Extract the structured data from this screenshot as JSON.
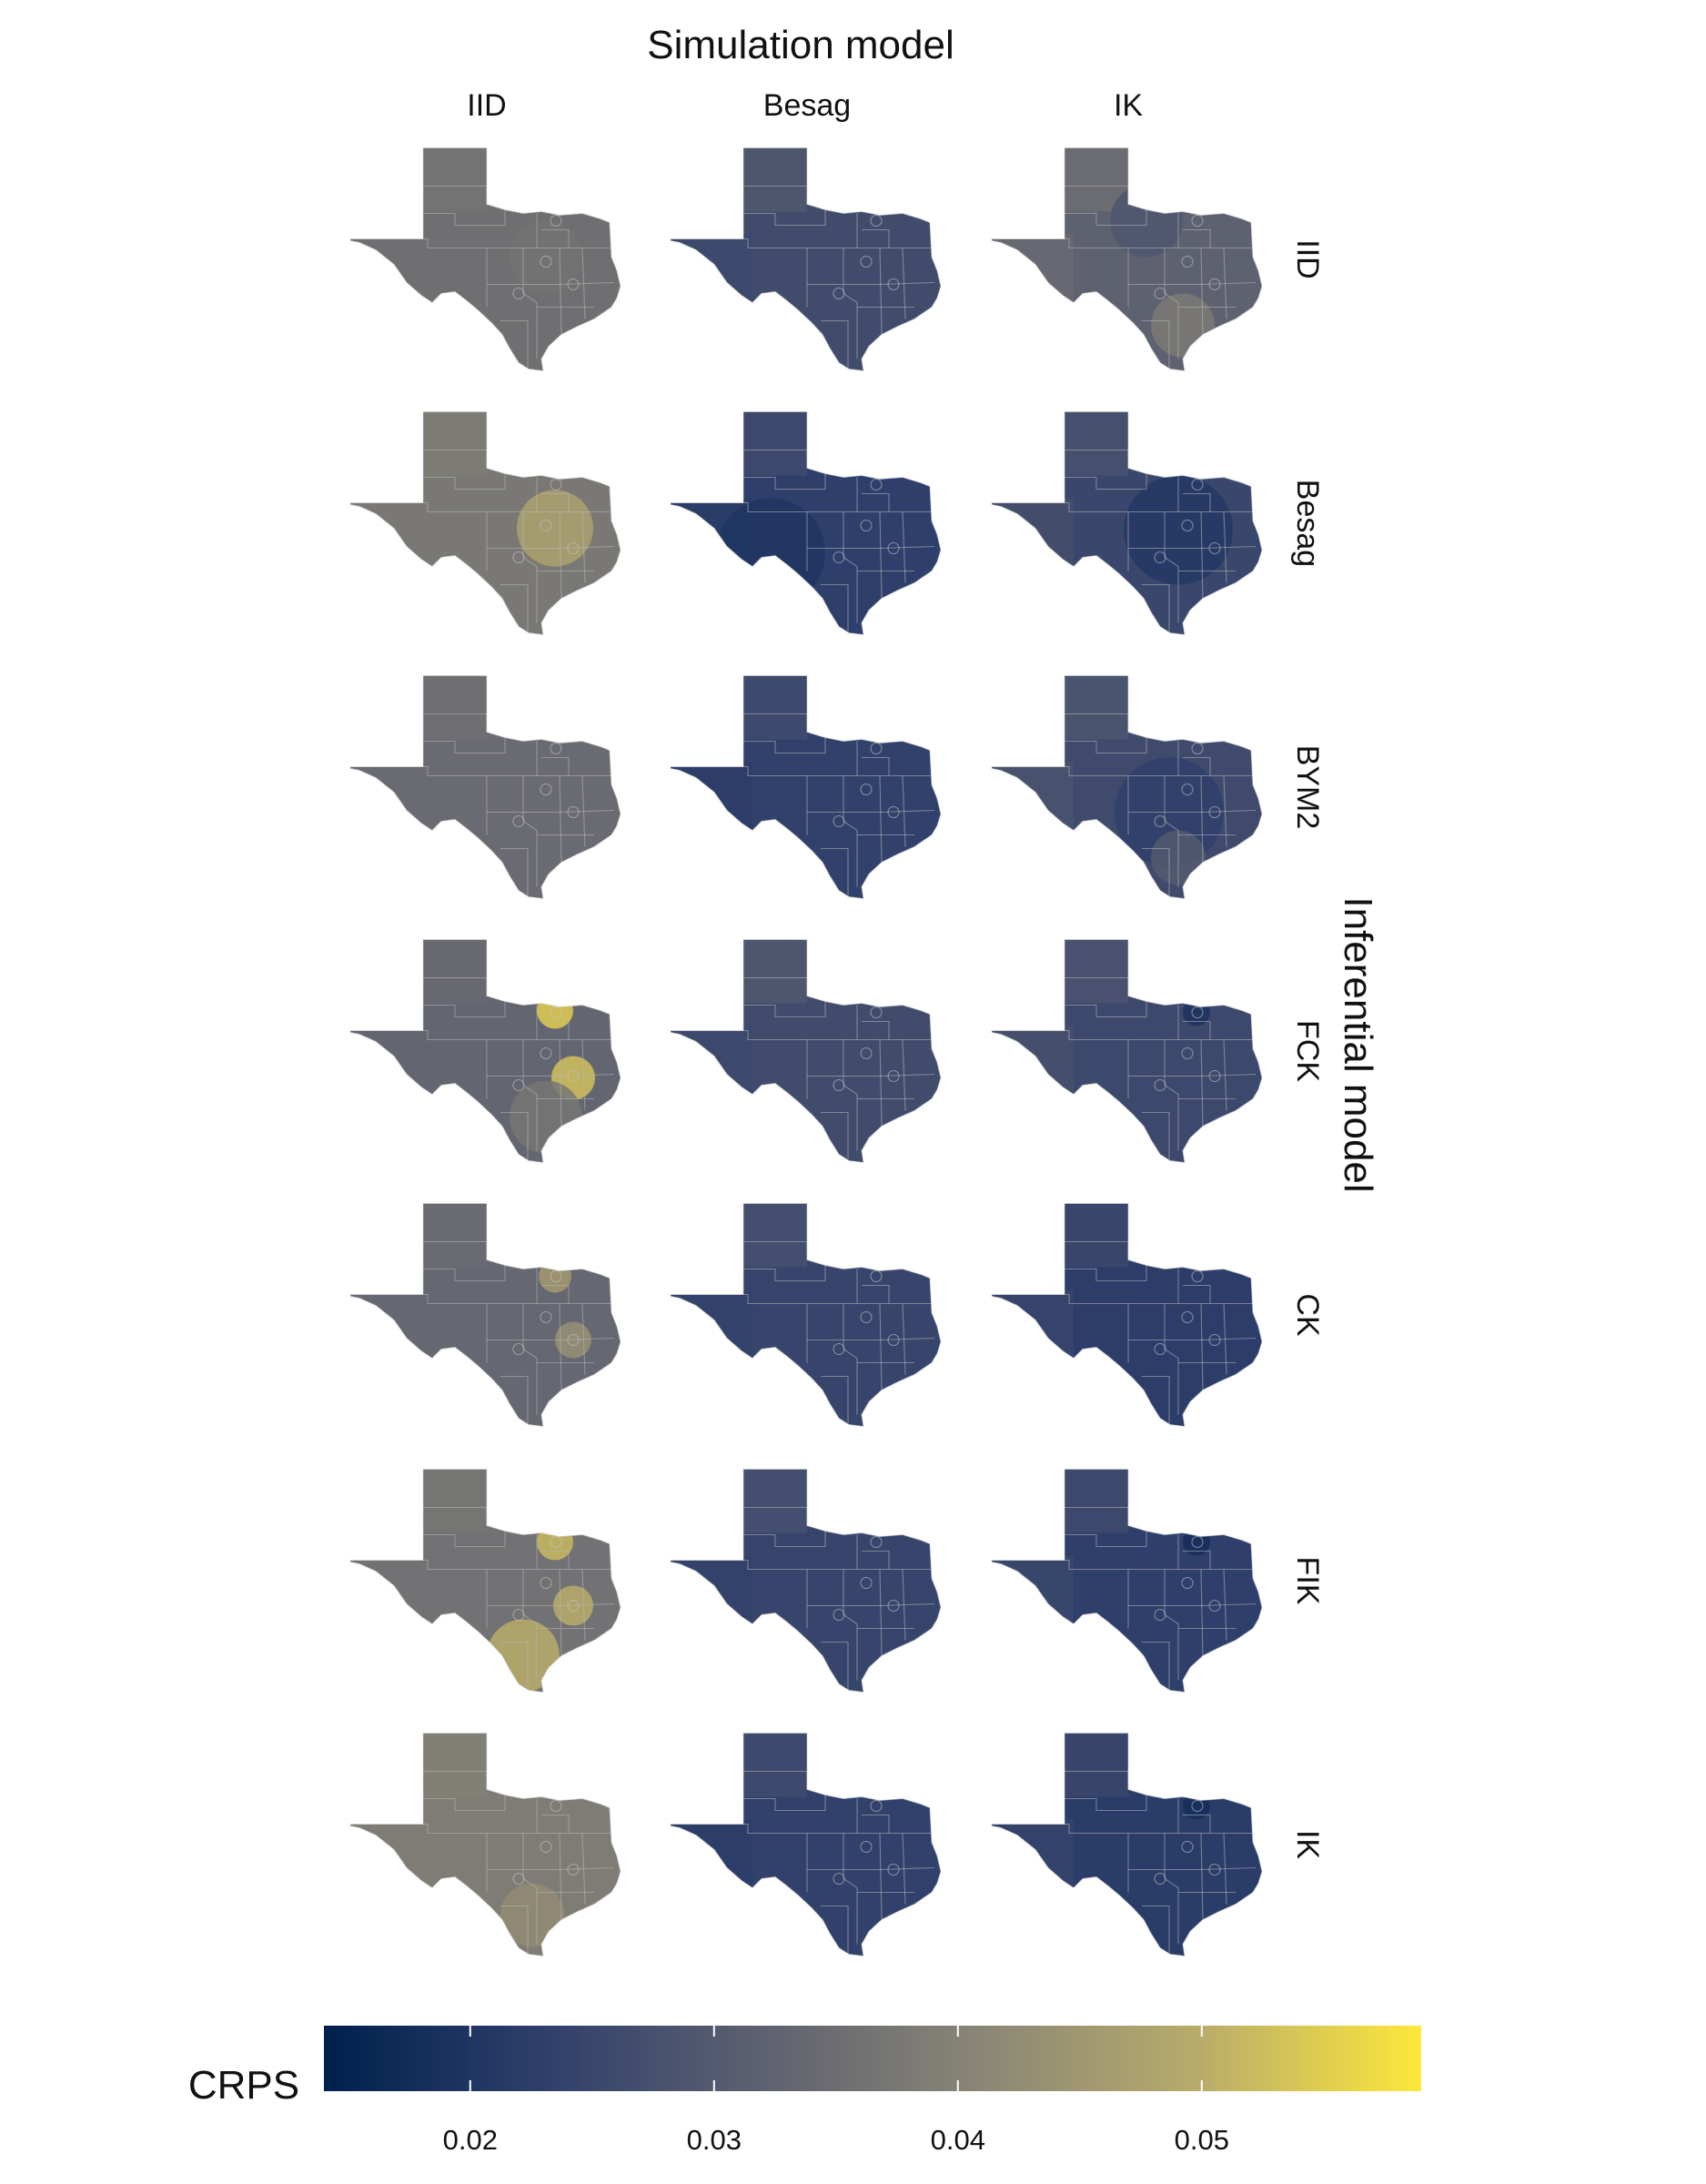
{
  "chart_data": {
    "type": "choropleth-facet",
    "region": "Texas",
    "x_facet_title": "Simulation model",
    "y_facet_title": "Inferential model",
    "columns": [
      "IID",
      "Besag",
      "IK"
    ],
    "rows": [
      "IID",
      "Besag",
      "BYM2",
      "FCK",
      "CK",
      "FIK",
      "IK"
    ],
    "legend": {
      "title": "CRPS",
      "position": "bottom",
      "range": [
        0.014,
        0.059
      ],
      "ticks": [
        0.02,
        0.03,
        0.04,
        0.05
      ],
      "tick_labels": [
        "0.02",
        "0.03",
        "0.04",
        "0.05"
      ],
      "colors": [
        "#00204d",
        "#2f3f6b",
        "#5e6170",
        "#8a8676",
        "#b9ac6a",
        "#fde83a"
      ]
    },
    "crps_base": [
      [
        0.0355,
        0.0265,
        0.032
      ],
      [
        0.0375,
        0.023,
        0.025
      ],
      [
        0.0345,
        0.0235,
        0.026
      ],
      [
        0.033,
        0.0265,
        0.0255
      ],
      [
        0.0335,
        0.0245,
        0.0225
      ],
      [
        0.036,
        0.0245,
        0.023
      ],
      [
        0.0385,
        0.0235,
        0.022
      ]
    ]
  }
}
